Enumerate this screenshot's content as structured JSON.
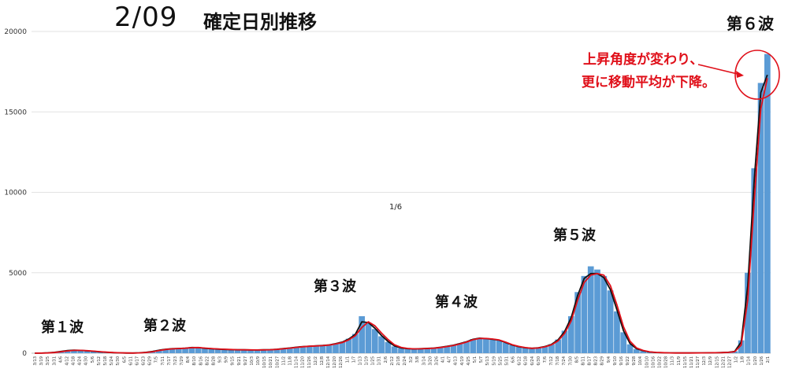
{
  "header": {
    "date": "2/09",
    "title": "確定日別推移"
  },
  "annotations": {
    "wave_labels": [
      "第１波",
      "第２波",
      "第３波",
      "第４波",
      "第５波",
      "第６波"
    ],
    "note_line1": "上昇角度が変わり、",
    "note_line2": "更に移動平均が下降。",
    "center_label": "1/6"
  },
  "colors": {
    "bars": "#5b9bd5",
    "ma7": "#111111",
    "ma_alt": "#e0101a",
    "note": "#e0101a",
    "grid": "#e2e2e2"
  },
  "chart_data": {
    "type": "bar",
    "title": "確定日別推移",
    "ylim": [
      0,
      20000
    ],
    "y_ticks": [
      0,
      5000,
      10000,
      15000,
      20000
    ],
    "x_tick_labels": [
      "3/13",
      "3/19",
      "3/25",
      "3/31",
      "4/6",
      "4/12",
      "4/18",
      "4/24",
      "4/30",
      "5/6",
      "5/12",
      "5/18",
      "5/24",
      "5/30",
      "6/5",
      "6/11",
      "6/17",
      "6/23",
      "6/29",
      "7/5",
      "7/11",
      "7/17",
      "7/23",
      "7/29",
      "8/4",
      "8/10",
      "8/16",
      "8/22",
      "8/28",
      "9/3",
      "9/9",
      "9/15",
      "9/21",
      "9/27",
      "10/3",
      "10/9",
      "10/15",
      "10/21",
      "10/27",
      "11/2",
      "11/8",
      "11/14",
      "11/20",
      "11/26",
      "12/2",
      "12/8",
      "12/14",
      "12/20",
      "12/26",
      "1/1",
      "1/7",
      "1/13",
      "1/19",
      "1/25",
      "1/31",
      "2/6",
      "2/12",
      "2/18",
      "2/24",
      "3/2",
      "3/8",
      "3/14",
      "3/20",
      "3/26",
      "4/1",
      "4/7",
      "4/13",
      "4/19",
      "4/25",
      "5/1",
      "5/7",
      "5/13",
      "5/19",
      "5/25",
      "5/31",
      "6/6",
      "6/12",
      "6/18",
      "6/24",
      "6/30",
      "7/6",
      "7/12",
      "7/18",
      "7/24",
      "7/30",
      "8/5",
      "8/11",
      "8/17",
      "8/23",
      "8/29",
      "9/4",
      "9/10",
      "9/16",
      "9/22",
      "9/28",
      "10/4",
      "10/10",
      "10/16",
      "10/22",
      "10/28",
      "11/3",
      "11/9",
      "11/15",
      "11/21",
      "11/27",
      "12/3",
      "12/9",
      "12/15",
      "12/21",
      "12/27",
      "1/2",
      "1/8",
      "1/14",
      "1/20",
      "1/26",
      "2/1"
    ],
    "daily_cases_weekly_sampled": [
      0,
      10,
      30,
      60,
      120,
      170,
      190,
      170,
      140,
      110,
      80,
      50,
      30,
      20,
      10,
      10,
      30,
      60,
      120,
      200,
      260,
      290,
      300,
      320,
      360,
      350,
      300,
      280,
      250,
      230,
      220,
      210,
      210,
      200,
      200,
      210,
      220,
      250,
      290,
      330,
      380,
      420,
      440,
      460,
      480,
      520,
      600,
      700,
      900,
      1200,
      2300,
      1900,
      1500,
      1050,
      700,
      420,
      320,
      280,
      260,
      280,
      300,
      320,
      370,
      430,
      500,
      600,
      720,
      880,
      950,
      900,
      860,
      800,
      650,
      500,
      400,
      330,
      300,
      340,
      420,
      560,
      850,
      1400,
      2300,
      3800,
      4800,
      5400,
      5200,
      4800,
      3900,
      2600,
      1300,
      550,
      260,
      140,
      70,
      40,
      30,
      20,
      15,
      15,
      15,
      20,
      20,
      25,
      30,
      40,
      60,
      120,
      800,
      5000,
      11500,
      16800,
      18600
    ],
    "series": [
      {
        "name": "",
        "values": [
          0,
          5,
          25,
          55,
          110,
          160,
          185,
          175,
          145,
          115,
          85,
          55,
          35,
          20,
          12,
          10,
          25,
          55,
          110,
          185,
          245,
          280,
          295,
          315,
          350,
          345,
          305,
          280,
          255,
          235,
          222,
          212,
          208,
          202,
          200,
          208,
          220,
          245,
          285,
          325,
          372,
          412,
          436,
          458,
          478,
          515,
          590,
          690,
          880,
          1170,
          1950,
          1900,
          1550,
          1100,
          730,
          450,
          330,
          285,
          262,
          278,
          298,
          318,
          365,
          425,
          495,
          595,
          710,
          860,
          935,
          905,
          865,
          805,
          660,
          510,
          405,
          335,
          302,
          338,
          415,
          550,
          830,
          1350,
          2200,
          3600,
          4650,
          4950,
          4950,
          4700,
          3950,
          2700,
          1400,
          600,
          280,
          150,
          75,
          42,
          30,
          20,
          15,
          14,
          14,
          18,
          20,
          24,
          30,
          38,
          55,
          110,
          700,
          4200,
          10800,
          16200,
          17300
        ]
      },
      {
        "name": "",
        "values": [
          0,
          3,
          15,
          40,
          90,
          140,
          175,
          178,
          158,
          125,
          95,
          62,
          40,
          24,
          14,
          10,
          18,
          45,
          90,
          165,
          230,
          270,
          290,
          310,
          340,
          350,
          318,
          290,
          265,
          243,
          228,
          216,
          210,
          204,
          200,
          204,
          215,
          236,
          272,
          312,
          360,
          400,
          428,
          450,
          470,
          505,
          570,
          660,
          830,
          1090,
          1600,
          1950,
          1700,
          1250,
          850,
          520,
          360,
          295,
          268,
          272,
          290,
          310,
          352,
          410,
          480,
          575,
          690,
          835,
          915,
          915,
          880,
          820,
          685,
          530,
          420,
          345,
          305,
          325,
          395,
          520,
          770,
          1230,
          2000,
          3300,
          4400,
          4850,
          4950,
          4850,
          4200,
          3000,
          1650,
          750,
          330,
          170,
          85,
          48,
          32,
          22,
          16,
          14,
          14,
          16,
          19,
          23,
          28,
          35,
          50,
          95,
          500,
          3300,
          9500,
          15200,
          17100
        ]
      }
    ]
  }
}
